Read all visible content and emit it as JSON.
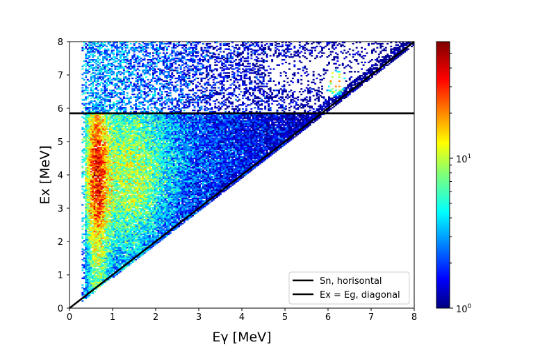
{
  "chart_data": {
    "type": "heatmap",
    "xlabel": "Eγ [MeV]",
    "ylabel": "Ex [MeV]",
    "xlim": [
      0,
      8
    ],
    "ylim": [
      0,
      8
    ],
    "x_ticks": [
      "0",
      "1",
      "2",
      "3",
      "4",
      "5",
      "6",
      "7",
      "8"
    ],
    "y_ticks": [
      "0",
      "1",
      "2",
      "3",
      "4",
      "5",
      "6",
      "7",
      "8"
    ],
    "colorbar": {
      "scale": "log",
      "colormap": "jet",
      "range": [
        1,
        60
      ],
      "major_ticks": [
        1,
        10
      ],
      "major_tick_labels": [
        "10",
        "10"
      ],
      "major_tick_exponents": [
        "0",
        "1"
      ]
    },
    "lines": [
      {
        "label": "Sn, horisontal",
        "type": "horizontal",
        "y": 5.85,
        "color": "#000000"
      },
      {
        "label": "Ex = Eg, diagonal",
        "type": "diagonal",
        "x": [
          0,
          8
        ],
        "y": [
          0,
          8
        ],
        "color": "#000000"
      }
    ],
    "legend_position": "lower right",
    "data_regions": [
      {
        "description": "dense band near Eγ 0.5",
        "x_range": [
          0.3,
          1.2
        ],
        "y_range": [
          2.5,
          5.8
        ],
        "intensity": "high"
      },
      {
        "description": "peak",
        "x": 6.15,
        "y": 6.75,
        "intensity": "max"
      }
    ]
  }
}
